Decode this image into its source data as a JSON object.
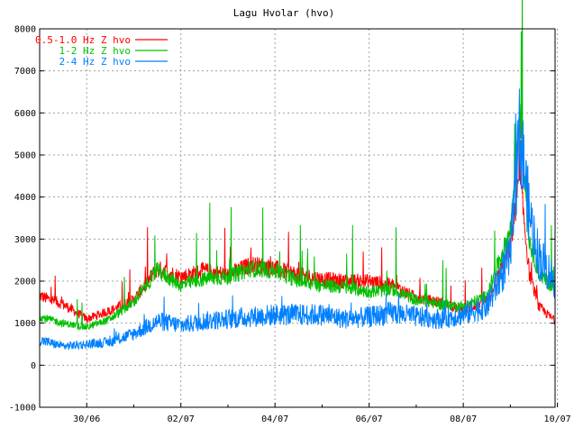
{
  "chart_data": {
    "type": "line",
    "title": "Lagu Hvolar (hvo)",
    "xlabel": "",
    "ylabel": "",
    "ylim": [
      -1000,
      8000
    ],
    "yticks": [
      "8000",
      "7000",
      "6000",
      "5000",
      "4000",
      "3000",
      "2000",
      "1000",
      "0",
      "-1000"
    ],
    "x_tick_labels": [
      "30/06",
      "02/07",
      "04/07",
      "06/07",
      "08/07",
      "10/07"
    ],
    "xlim_days": [
      -1.0,
      9.95
    ],
    "grid": true,
    "legend_position": "top-left",
    "x_days": [
      -1.0,
      -0.5,
      0.0,
      0.5,
      1.0,
      1.5,
      2.0,
      2.5,
      3.0,
      3.5,
      4.0,
      4.5,
      5.0,
      5.5,
      6.0,
      6.5,
      7.0,
      7.5,
      8.0,
      8.5,
      9.0,
      9.2,
      9.4,
      9.6,
      9.95
    ],
    "series": [
      {
        "name": "0.5-1.0 Hz Z hvo",
        "color": "#ff0000",
        "values": [
          1650,
          1450,
          1100,
          1300,
          1550,
          2300,
          2100,
          2250,
          2150,
          2400,
          2300,
          2150,
          2050,
          2000,
          2000,
          1900,
          1600,
          1500,
          1300,
          1550,
          2800,
          4500,
          2200,
          1400,
          1050
        ]
      },
      {
        "name": "1-2 Hz Z hvo",
        "color": "#00c000",
        "values": [
          1150,
          1000,
          900,
          1100,
          1500,
          2250,
          1900,
          2050,
          2100,
          2300,
          2250,
          2000,
          1900,
          1850,
          1750,
          1800,
          1550,
          1450,
          1400,
          1650,
          3200,
          6200,
          3000,
          2200,
          1800
        ]
      },
      {
        "name": "2-4 Hz Z hvo",
        "color": "#0080ff",
        "values": [
          600,
          450,
          500,
          550,
          750,
          1050,
          950,
          1050,
          1100,
          1150,
          1200,
          1200,
          1200,
          1100,
          1150,
          1250,
          1150,
          1100,
          1200,
          1400,
          2600,
          5600,
          3600,
          2600,
          2000
        ]
      }
    ]
  }
}
